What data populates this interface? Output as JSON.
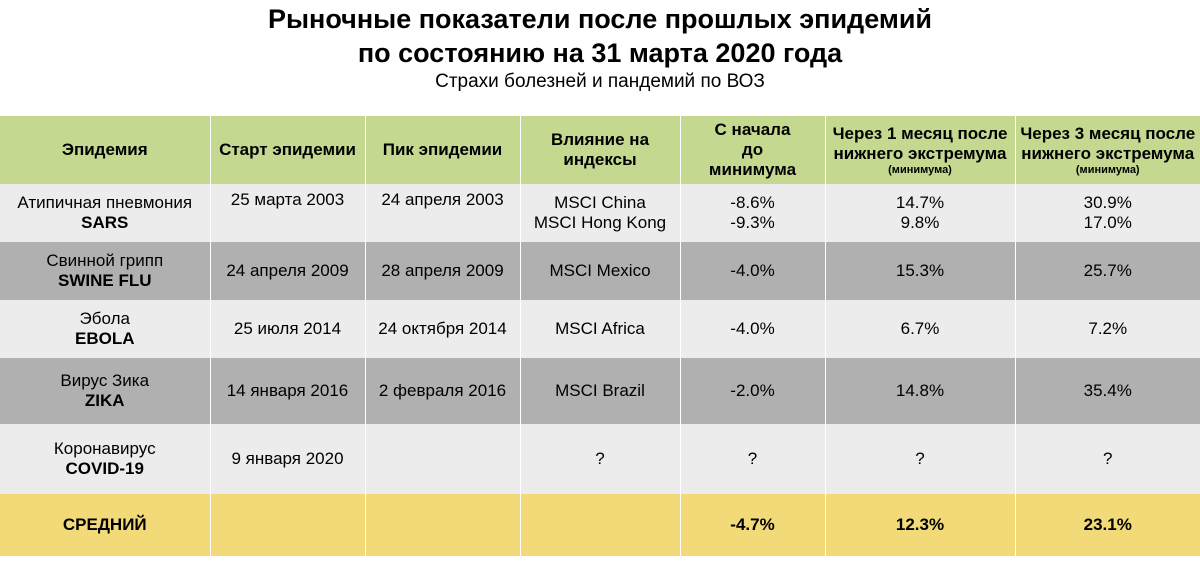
{
  "title_line1": "Рыночные показатели после прошлых эпидемий",
  "title_line2": "по состоянию на 31 марта 2020 года",
  "subtitle": "Страхи болезней и пандемий по ВОЗ",
  "columns": [
    {
      "label": "Эпидемия",
      "note": ""
    },
    {
      "label": "Старт эпидемии",
      "note": ""
    },
    {
      "label": "Пик эпидемии",
      "note": ""
    },
    {
      "label": "Влияние на индексы",
      "note": ""
    },
    {
      "label": "С начала до минимума",
      "note": ""
    },
    {
      "label": "Через 1 месяц после нижнего экстремума",
      "note": "(минимума)"
    },
    {
      "label": "Через 3 месяц после нижнего экстремума",
      "note": "(минимума)"
    }
  ],
  "rows": [
    {
      "name": "Атипичная пневмония",
      "code": "SARS",
      "start": "25 марта 2003",
      "peak": "24 апреля 2003",
      "indices": [
        "MSCI China",
        "MSCI Hong Kong"
      ],
      "to_min": [
        "-8.6%",
        "-9.3%"
      ],
      "after1": [
        "14.7%",
        "9.8%"
      ],
      "after3": [
        "30.9%",
        "17.0%"
      ]
    },
    {
      "name": "Свинной грипп",
      "code": "SWINE FLU",
      "start": "24 апреля 2009",
      "peak": "28 апреля 2009",
      "indices": [
        "MSCI Mexico"
      ],
      "to_min": [
        "-4.0%"
      ],
      "after1": [
        "15.3%"
      ],
      "after3": [
        "25.7%"
      ]
    },
    {
      "name": "Эбола",
      "code": "EBOLA",
      "start": "25 июля 2014",
      "peak": "24 октября 2014",
      "indices": [
        "MSCI Africa"
      ],
      "to_min": [
        "-4.0%"
      ],
      "after1": [
        "6.7%"
      ],
      "after3": [
        "7.2%"
      ]
    },
    {
      "name": "Вирус Зика",
      "code": "ZIKA",
      "start": "14 января 2016",
      "peak": "2 февраля 2016",
      "indices": [
        "MSCI Brazil"
      ],
      "to_min": [
        "-2.0%"
      ],
      "after1": [
        "14.8%"
      ],
      "after3": [
        "35.4%"
      ]
    },
    {
      "name": "Коронавирус",
      "code": "COVID-19",
      "start": "9 января 2020",
      "peak": "",
      "indices": [
        "?"
      ],
      "to_min": [
        "?"
      ],
      "after1": [
        "?"
      ],
      "after3": [
        "?"
      ]
    }
  ],
  "average": {
    "label": "СРЕДНИЙ",
    "to_min": "-4.7%",
    "after1": "12.3%",
    "after3": "23.1%"
  },
  "colors": {
    "header": "#c4d98f",
    "row_light": "#ececec",
    "row_dark": "#b0b0b0",
    "average": "#f1da77"
  },
  "chart_data": {
    "type": "table",
    "title": "Рыночные показатели после прошлых эпидемий по состоянию на 31 марта 2020 года",
    "subtitle": "Страхи болезней и пандемий по ВОЗ",
    "columns": [
      "Эпидемия",
      "Старт эпидемии",
      "Пик эпидемии",
      "Влияние на индексы",
      "С начала до минимума",
      "Через 1 месяц после нижнего экстремума (минимума)",
      "Через 3 месяц после нижнего экстремума (минимума)"
    ],
    "records": [
      [
        "SARS",
        "25 марта 2003",
        "24 апреля 2003",
        "MSCI China",
        -8.6,
        14.7,
        30.9
      ],
      [
        "SARS",
        "25 марта 2003",
        "24 апреля 2003",
        "MSCI Hong Kong",
        -9.3,
        9.8,
        17.0
      ],
      [
        "SWINE FLU",
        "24 апреля 2009",
        "28 апреля 2009",
        "MSCI Mexico",
        -4.0,
        15.3,
        25.7
      ],
      [
        "EBOLA",
        "25 июля 2014",
        "24 октября 2014",
        "MSCI Africa",
        -4.0,
        6.7,
        7.2
      ],
      [
        "ZIKA",
        "14 января 2016",
        "2 февраля 2016",
        "MSCI Brazil",
        -2.0,
        14.8,
        35.4
      ],
      [
        "COVID-19",
        "9 января 2020",
        "",
        "?",
        null,
        null,
        null
      ]
    ],
    "average": [
      -4.7,
      12.3,
      23.1
    ]
  }
}
